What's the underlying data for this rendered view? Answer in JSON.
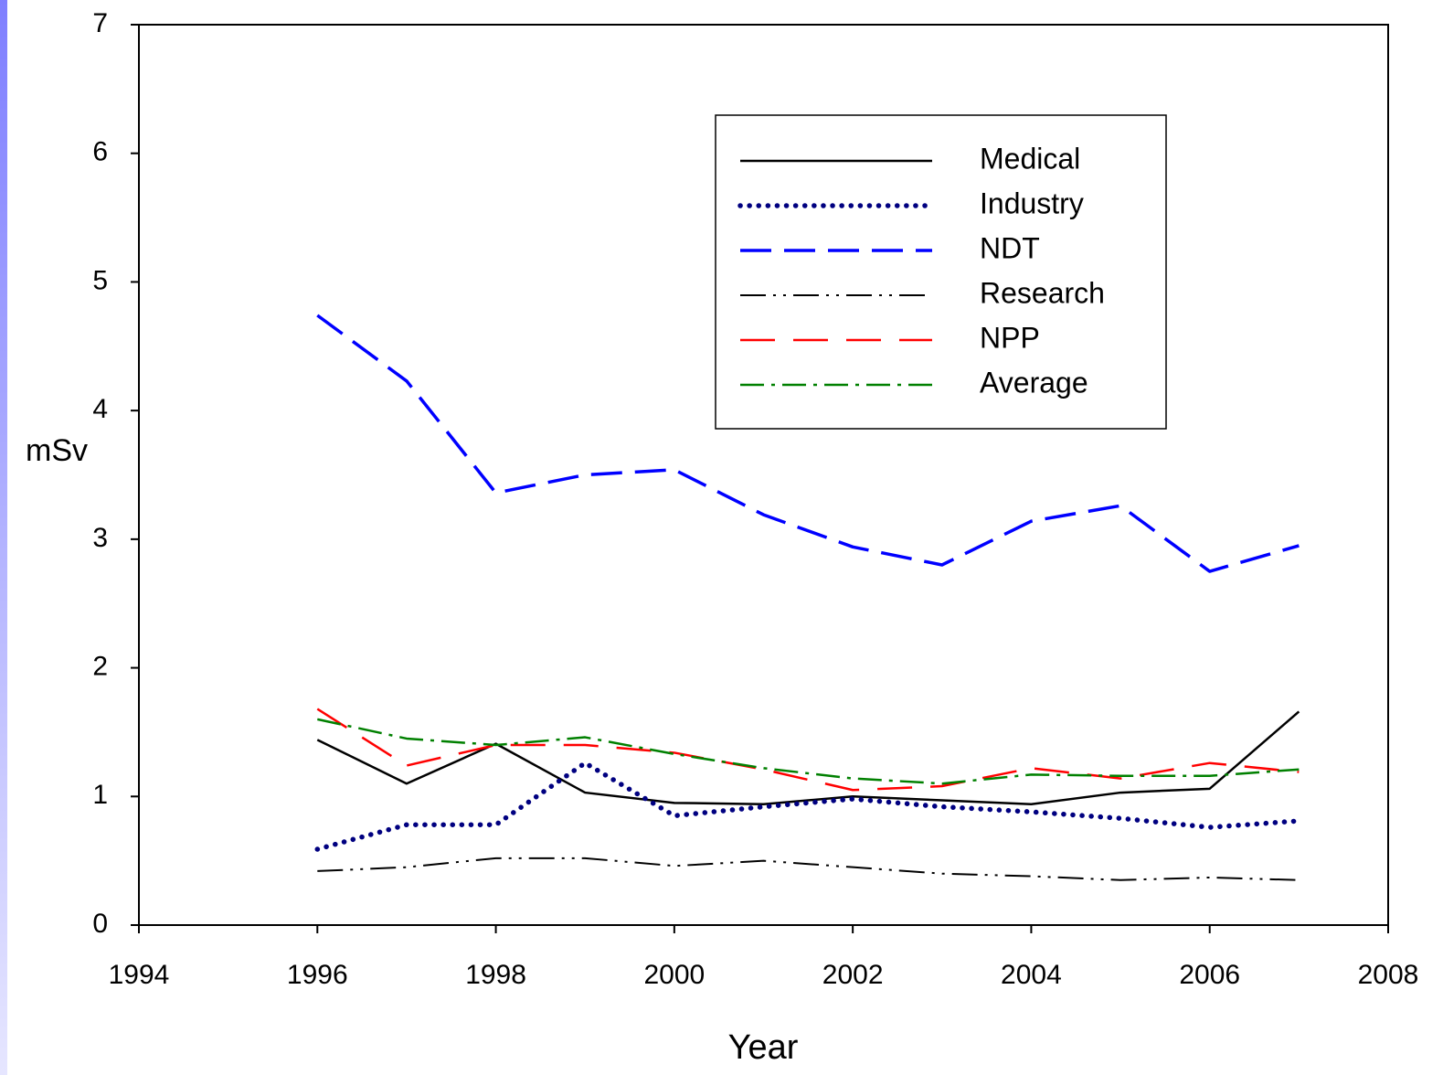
{
  "chart_data": {
    "type": "line",
    "x_label": "Year",
    "y_label": "mSv",
    "x": [
      1996,
      1997,
      1998,
      1999,
      2000,
      2001,
      2002,
      2003,
      2004,
      2005,
      2006,
      2007
    ],
    "series": [
      {
        "name": "Medical",
        "color": "#000000",
        "dash": "solid",
        "values": [
          1.44,
          1.1,
          1.41,
          1.03,
          0.95,
          0.94,
          1.0,
          0.97,
          0.94,
          1.03,
          1.06,
          1.66
        ]
      },
      {
        "name": "Industry",
        "color": "#000080",
        "dash": "dotted",
        "values": [
          0.59,
          0.78,
          0.78,
          1.26,
          0.85,
          0.92,
          0.98,
          0.92,
          0.88,
          0.83,
          0.76,
          0.81
        ]
      },
      {
        "name": "NDT",
        "color": "#0000ff",
        "dash": "dashed",
        "values": [
          4.74,
          4.23,
          3.36,
          3.5,
          3.54,
          3.19,
          2.94,
          2.8,
          3.14,
          3.26,
          2.75,
          2.95
        ]
      },
      {
        "name": "Research",
        "color": "#000000",
        "dash": "dashdotdot",
        "values": [
          0.42,
          0.45,
          0.52,
          0.52,
          0.46,
          0.5,
          0.45,
          0.4,
          0.38,
          0.35,
          0.37,
          0.35
        ]
      },
      {
        "name": "NPP",
        "color": "#ff0000",
        "dash": "longdash",
        "values": [
          1.68,
          1.24,
          1.4,
          1.4,
          1.34,
          1.21,
          1.05,
          1.08,
          1.22,
          1.14,
          1.26,
          1.19
        ]
      },
      {
        "name": "Average",
        "color": "#008000",
        "dash": "dashdot",
        "values": [
          1.6,
          1.45,
          1.4,
          1.46,
          1.33,
          1.22,
          1.14,
          1.1,
          1.17,
          1.16,
          1.16,
          1.21
        ]
      }
    ],
    "xlim": [
      1994,
      2008
    ],
    "xticks": [
      1994,
      1996,
      1998,
      2000,
      2002,
      2004,
      2006,
      2008
    ],
    "ylim": [
      0,
      7
    ],
    "yticks": [
      0,
      1,
      2,
      3,
      4,
      5,
      6,
      7
    ],
    "legend": "upper right"
  }
}
